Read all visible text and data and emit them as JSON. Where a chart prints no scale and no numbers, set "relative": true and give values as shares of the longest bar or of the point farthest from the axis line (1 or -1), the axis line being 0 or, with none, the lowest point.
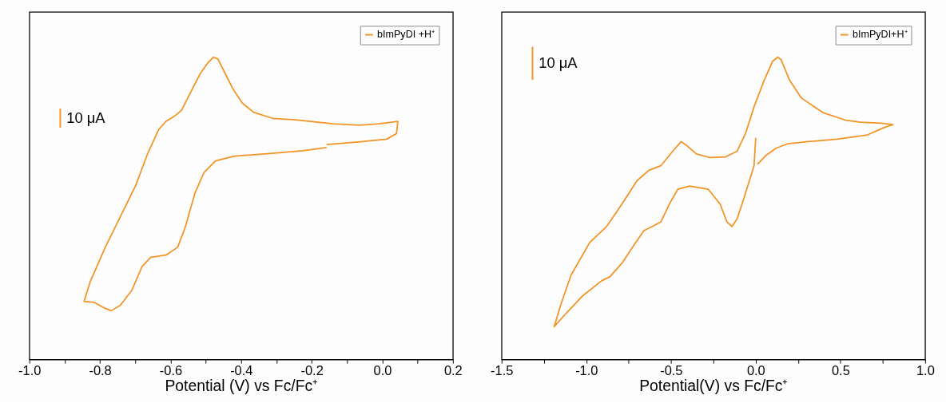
{
  "chart_data": [
    {
      "type": "line",
      "relative": true,
      "xlabel": "Potential (V) vs Fc/Fc⁺",
      "legend": "top right",
      "annotations": [
        "10 μA"
      ],
      "xlim": [
        -1.0,
        0.2
      ],
      "xticks": [
        {
          "value": -1.0,
          "label": "-1.0"
        },
        {
          "value": -0.9,
          "label": null
        },
        {
          "value": -0.8,
          "label": "-0.8"
        },
        {
          "value": -0.7,
          "label": null
        },
        {
          "value": -0.6,
          "label": "-0.6"
        },
        {
          "value": -0.5,
          "label": null
        },
        {
          "value": -0.4,
          "label": "-0.4"
        },
        {
          "value": -0.3,
          "label": null
        },
        {
          "value": -0.2,
          "label": "-0.2"
        },
        {
          "value": -0.1,
          "label": null
        },
        {
          "value": 0.0,
          "label": "0.0"
        },
        {
          "value": 0.1,
          "label": null
        },
        {
          "value": 0.2,
          "label": "0.2"
        }
      ],
      "series": [
        {
          "name": "bImPyDI +H⁺",
          "color": "#f39325",
          "x": [
            -0.158,
            -0.074,
            0.012,
            0.04,
            0.044,
            -0.01,
            -0.064,
            -0.139,
            -0.204,
            -0.247,
            -0.311,
            -0.365,
            -0.397,
            -0.423,
            -0.445,
            -0.466,
            -0.479,
            -0.494,
            -0.516,
            -0.544,
            -0.569,
            -0.591,
            -0.613,
            -0.634,
            -0.666,
            -0.699,
            -0.742,
            -0.785,
            -0.828,
            -0.845,
            -0.817,
            -0.789,
            -0.768,
            -0.742,
            -0.709,
            -0.681,
            -0.656,
            -0.613,
            -0.58,
            -0.559,
            -0.531,
            -0.505,
            -0.473,
            -0.419,
            -0.333,
            -0.225,
            -0.158
          ],
          "values": [
            0.711,
            0.719,
            0.729,
            0.747,
            0.788,
            0.78,
            0.775,
            0.78,
            0.788,
            0.793,
            0.798,
            0.818,
            0.849,
            0.895,
            0.946,
            0.995,
            1.0,
            0.982,
            0.946,
            0.882,
            0.824,
            0.803,
            0.788,
            0.76,
            0.678,
            0.575,
            0.473,
            0.371,
            0.256,
            0.192,
            0.189,
            0.171,
            0.161,
            0.179,
            0.23,
            0.307,
            0.338,
            0.345,
            0.371,
            0.435,
            0.55,
            0.619,
            0.657,
            0.673,
            0.68,
            0.691,
            0.701
          ]
        }
      ]
    },
    {
      "type": "line",
      "relative": true,
      "xlabel": "Potential(V) vs Fc/Fc⁺",
      "legend": "top right",
      "annotations": [
        "10 μA"
      ],
      "xlim": [
        -1.5,
        1.0
      ],
      "xticks": [
        {
          "value": -1.5,
          "label": "-1.5"
        },
        {
          "value": -1.25,
          "label": null
        },
        {
          "value": -1.0,
          "label": "-1.0"
        },
        {
          "value": -0.75,
          "label": null
        },
        {
          "value": -0.5,
          "label": "-0.5"
        },
        {
          "value": -0.25,
          "label": null
        },
        {
          "value": 0.0,
          "label": "0.0"
        },
        {
          "value": 0.25,
          "label": null
        },
        {
          "value": 0.5,
          "label": "0.5"
        },
        {
          "value": 0.75,
          "label": null
        },
        {
          "value": 1.0,
          "label": "1.0"
        }
      ],
      "series": [
        {
          "name": "bImPyDI+H⁺",
          "color": "#f39325",
          "x": [
            0.0,
            -0.01,
            -0.07,
            -0.11,
            -0.14,
            -0.17,
            -0.21,
            -0.28,
            -0.39,
            -0.46,
            -0.51,
            -0.56,
            -0.61,
            -0.66,
            -0.72,
            -0.79,
            -0.86,
            -0.91,
            -1.02,
            -1.12,
            -1.19,
            -1.15,
            -1.09,
            -0.98,
            -0.88,
            -0.79,
            -0.7,
            -0.63,
            -0.56,
            -0.49,
            -0.44,
            -0.41,
            -0.35,
            -0.27,
            -0.18,
            -0.11,
            -0.06,
            -0.01,
            0.05,
            0.1,
            0.13,
            0.15,
            0.2,
            0.27,
            0.4,
            0.53,
            0.62,
            0.74,
            0.81,
            0.76,
            0.66,
            0.48,
            0.31,
            0.19,
            0.12,
            0.06,
            0.01
          ],
          "values": [
            0.733,
            0.641,
            0.533,
            0.465,
            0.44,
            0.455,
            0.514,
            0.563,
            0.574,
            0.563,
            0.514,
            0.455,
            0.44,
            0.426,
            0.377,
            0.318,
            0.274,
            0.26,
            0.211,
            0.152,
            0.108,
            0.182,
            0.279,
            0.387,
            0.44,
            0.514,
            0.592,
            0.626,
            0.641,
            0.689,
            0.721,
            0.709,
            0.68,
            0.668,
            0.67,
            0.689,
            0.748,
            0.836,
            0.924,
            0.987,
            1.0,
            0.992,
            0.924,
            0.865,
            0.816,
            0.792,
            0.785,
            0.782,
            0.777,
            0.768,
            0.743,
            0.729,
            0.721,
            0.714,
            0.699,
            0.675,
            0.646
          ]
        }
      ]
    }
  ]
}
